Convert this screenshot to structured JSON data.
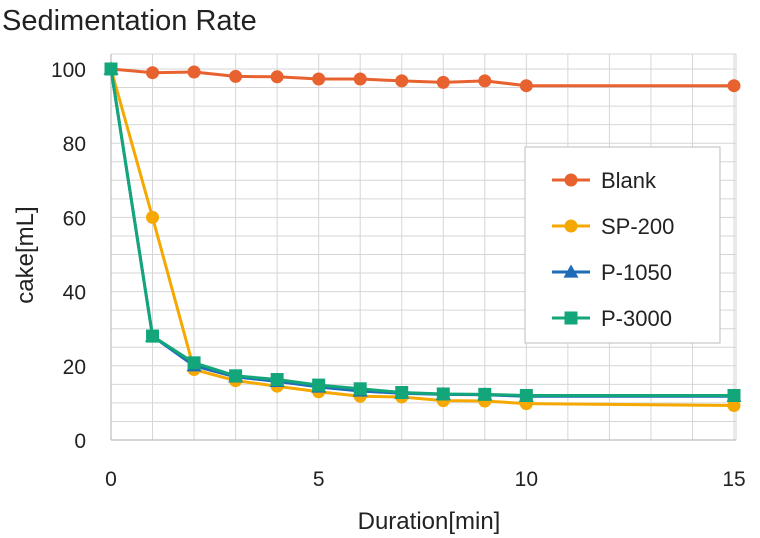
{
  "chart_data": {
    "type": "line",
    "title": "Sedimentation Rate",
    "xlabel": "Duration[min]",
    "ylabel": "cake[mL]",
    "xlim": [
      0,
      15
    ],
    "ylim": [
      0,
      100
    ],
    "x_ticks": [
      0,
      5,
      10,
      15
    ],
    "y_ticks": [
      0,
      20,
      40,
      60,
      80,
      100
    ],
    "grid": true,
    "legend_position": "right",
    "series": [
      {
        "name": "Blank",
        "color": "#E8622F",
        "marker": "circle",
        "x": [
          0,
          1,
          2,
          3,
          4,
          5,
          6,
          7,
          8,
          9,
          10,
          15
        ],
        "y": [
          100,
          99,
          99.2,
          98,
          97.9,
          97.3,
          97.3,
          96.8,
          96.4,
          96.8,
          95.5,
          95.5
        ]
      },
      {
        "name": "SP-200",
        "color": "#F5A800",
        "marker": "circle",
        "x": [
          0,
          1,
          2,
          3,
          4,
          5,
          6,
          7,
          8,
          9,
          10,
          15
        ],
        "y": [
          100,
          60,
          19,
          16,
          14.5,
          13,
          11.8,
          11.6,
          10.6,
          10.5,
          9.8,
          9.3
        ]
      },
      {
        "name": "P-1050",
        "color": "#1E6BB8",
        "marker": "triangle",
        "x": [
          0,
          1,
          2,
          3,
          4,
          5,
          6,
          7,
          8,
          9,
          10,
          15
        ],
        "y": [
          100,
          28,
          20,
          17,
          15.8,
          14.3,
          13.2,
          12.6,
          12.3,
          12.2,
          11.8,
          11.8
        ]
      },
      {
        "name": "P-3000",
        "color": "#13A67A",
        "marker": "square",
        "x": [
          0,
          1,
          2,
          3,
          4,
          5,
          6,
          7,
          8,
          9,
          10,
          15
        ],
        "y": [
          100,
          28,
          20.8,
          17.3,
          16.3,
          14.8,
          13.8,
          12.8,
          12.4,
          12.3,
          12,
          12
        ]
      }
    ]
  }
}
